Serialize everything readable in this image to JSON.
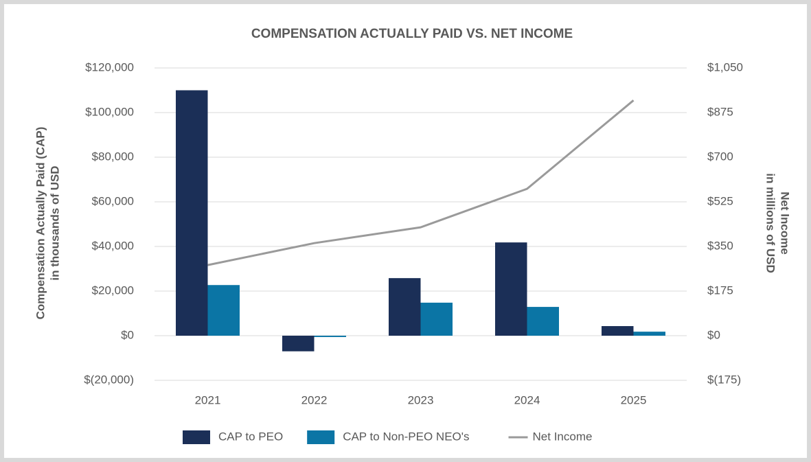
{
  "chart_data": {
    "type": "bar",
    "title": "COMPENSATION ACTUALLY PAID VS. NET INCOME",
    "y_label": [
      "Compensation Actually Paid (CAP)",
      "in thousands of USD"
    ],
    "y2_label": [
      "Net Income",
      "in millions of USD"
    ],
    "categories": [
      "2021",
      "2022",
      "2023",
      "2024",
      "2025"
    ],
    "series": [
      {
        "name": "CAP to PEO",
        "type": "bar",
        "color": "#1b2f57",
        "values": [
          110000,
          -7000,
          25800,
          41800,
          4300
        ]
      },
      {
        "name": "CAP to Non-PEO NEO's",
        "type": "bar",
        "color": "#0b75a5",
        "values": [
          22700,
          -600,
          14800,
          12900,
          1800
        ]
      },
      {
        "name": "Net Income",
        "type": "line",
        "axis": "y2",
        "color": "#9a9a9a",
        "values": [
          277,
          363,
          425,
          576,
          923
        ]
      }
    ],
    "ylim": [
      -20000,
      120000
    ],
    "yticks": [
      {
        "value": -20000,
        "label": "$(20,000)"
      },
      {
        "value": 0,
        "label": "$0"
      },
      {
        "value": 20000,
        "label": "$20,000"
      },
      {
        "value": 40000,
        "label": "$40,000"
      },
      {
        "value": 60000,
        "label": "$60,000"
      },
      {
        "value": 80000,
        "label": "$80,000"
      },
      {
        "value": 100000,
        "label": "$100,000"
      },
      {
        "value": 120000,
        "label": "$120,000"
      }
    ],
    "y2lim": [
      -175,
      1050
    ],
    "y2ticks": [
      {
        "value": -175,
        "label": "$(175)"
      },
      {
        "value": 0,
        "label": "$0"
      },
      {
        "value": 175,
        "label": "$175"
      },
      {
        "value": 350,
        "label": "$350"
      },
      {
        "value": 525,
        "label": "$525"
      },
      {
        "value": 700,
        "label": "$700"
      },
      {
        "value": 875,
        "label": "$875"
      },
      {
        "value": 1050,
        "label": "$1,050"
      }
    ],
    "grid": true,
    "legend": "bottom"
  }
}
